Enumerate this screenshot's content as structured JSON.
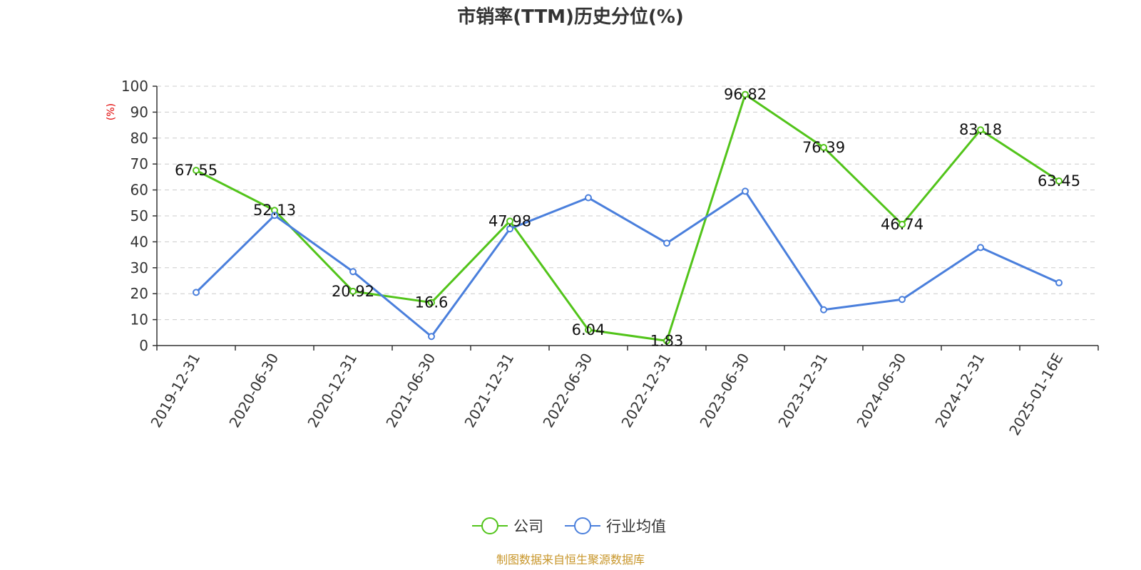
{
  "chart_data": {
    "type": "line",
    "title": "市销率(TTM)历史分位(%)",
    "ylabel": "(%)",
    "ylim": [
      0,
      100
    ],
    "yticks": [
      0,
      10,
      20,
      30,
      40,
      50,
      60,
      70,
      80,
      90,
      100
    ],
    "categories": [
      "2019-12-31",
      "2020-06-30",
      "2020-12-31",
      "2021-06-30",
      "2021-12-31",
      "2022-06-30",
      "2022-12-31",
      "2023-06-30",
      "2023-12-31",
      "2024-06-30",
      "2024-12-31",
      "2025-01-16E"
    ],
    "grid": true,
    "legend_position": "bottom",
    "series": [
      {
        "name": "公司",
        "color": "#52c41a",
        "values": [
          67.55,
          52.13,
          20.92,
          16.6,
          47.98,
          6.04,
          1.83,
          96.82,
          76.39,
          46.74,
          83.18,
          63.45
        ],
        "labels": [
          "67.55",
          "52.13",
          "20.92",
          "16.6",
          "47.98",
          "6.04",
          "1.83",
          "96.82",
          "76.39",
          "46.74",
          "83.18",
          "63.45"
        ]
      },
      {
        "name": "行业均值",
        "color": "#4a7fdc",
        "values": [
          20.5,
          50.2,
          28.5,
          3.5,
          45.0,
          57.0,
          39.5,
          59.5,
          13.8,
          17.8,
          37.8,
          24.2
        ]
      }
    ]
  },
  "source_text": "制图数据来自恒生聚源数据库"
}
